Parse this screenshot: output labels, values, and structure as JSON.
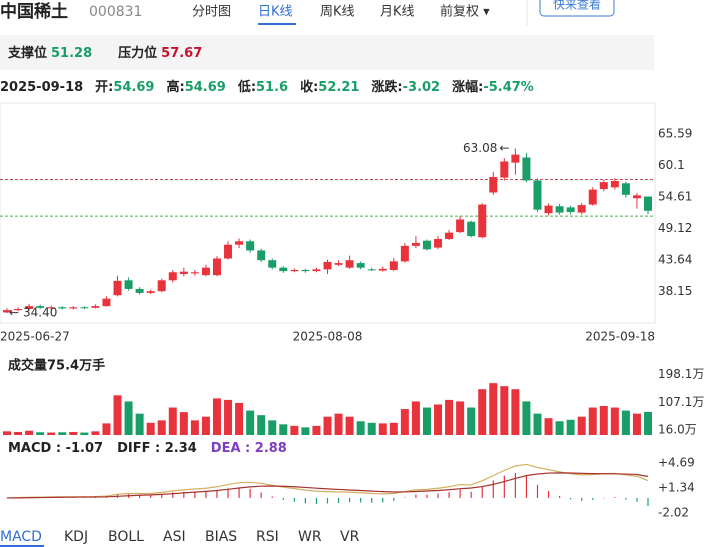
{
  "header": {
    "name": "中国稀土",
    "code": "000831",
    "tabs": [
      "分时图",
      "日K线",
      "周K线",
      "月K线",
      "前复权 ▾"
    ],
    "button": "快来查看"
  },
  "levels": {
    "support_label": "支撑位",
    "support": 51.28,
    "resistance_label": "压力位",
    "resistance": 57.67
  },
  "quote": {
    "date": "2025-09-18",
    "fields": [
      {
        "label": "开:",
        "value": 54.69
      },
      {
        "label": "高:",
        "value": 54.69
      },
      {
        "label": "低:",
        "value": 51.6
      },
      {
        "label": "收:",
        "value": 52.21
      },
      {
        "label": "涨跌:",
        "value": -3.02
      },
      {
        "label": "涨幅:",
        "value": -5.47,
        "value_label": "-5.47%"
      }
    ]
  },
  "price_chart": {
    "type": "candlestick",
    "up_color": "#e8323c",
    "down_color": "#1a9e68",
    "open": [
      34.5,
      34.9,
      35.1,
      35.6,
      35.3,
      35.4,
      35.2,
      35.4,
      35.3,
      35.6,
      37.5,
      40.1,
      38.6,
      37.9,
      38.2,
      40.1,
      41.2,
      41.3,
      41.0,
      41.0,
      43.9,
      46.3,
      46.9,
      45.3,
      43.6,
      42.3,
      41.7,
      41.9,
      41.7,
      42.0,
      42.8,
      42.3,
      43.1,
      42.0,
      41.8,
      41.9,
      43.4,
      46.1,
      47.0,
      45.8,
      47.3,
      48.5,
      50.3,
      47.6,
      55.4,
      58.0,
      60.6,
      61.5,
      57.5,
      51.8,
      53.0,
      52.8,
      51.9,
      53.3,
      56.0,
      56.3,
      57.0,
      54.4,
      54.69
    ],
    "close": [
      34.9,
      35.1,
      35.6,
      35.3,
      35.4,
      35.2,
      35.4,
      35.3,
      35.6,
      36.9,
      40.0,
      38.6,
      37.9,
      38.2,
      40.1,
      41.5,
      41.6,
      41.5,
      42.3,
      43.9,
      46.3,
      46.9,
      45.3,
      43.6,
      42.3,
      41.7,
      41.9,
      41.7,
      42.0,
      43.3,
      43.1,
      43.6,
      42.3,
      41.9,
      42.1,
      43.4,
      46.1,
      46.6,
      45.5,
      47.3,
      48.4,
      50.7,
      47.8,
      53.3,
      58.1,
      60.8,
      62.0,
      57.5,
      52.4,
      53.1,
      51.9,
      52.0,
      53.2,
      55.9,
      57.2,
      57.4,
      55.0,
      54.9,
      52.21
    ],
    "high": [
      35.2,
      35.4,
      36.0,
      35.9,
      35.7,
      35.6,
      35.6,
      35.6,
      35.9,
      37.3,
      40.9,
      40.6,
      38.9,
      38.5,
      40.4,
      41.9,
      42.3,
      41.9,
      42.8,
      44.3,
      46.9,
      47.4,
      47.2,
      45.6,
      43.9,
      42.6,
      42.2,
      42.1,
      42.3,
      43.7,
      43.6,
      44.4,
      43.4,
      42.3,
      42.5,
      44.0,
      46.6,
      47.8,
      47.2,
      47.8,
      48.9,
      51.3,
      50.5,
      53.5,
      59.0,
      61.4,
      63.08,
      62.3,
      57.9,
      53.5,
      53.4,
      53.1,
      53.6,
      56.3,
      57.6,
      57.9,
      57.3,
      55.3,
      54.69
    ],
    "low": [
      34.4,
      34.7,
      34.9,
      35.1,
      35.0,
      35.0,
      35.0,
      35.1,
      35.2,
      35.5,
      37.3,
      38.3,
      37.6,
      37.7,
      38.0,
      39.7,
      40.8,
      40.9,
      40.8,
      40.8,
      43.7,
      45.7,
      44.9,
      43.3,
      42.0,
      41.4,
      41.5,
      41.4,
      41.5,
      41.2,
      42.6,
      42.1,
      42.0,
      41.7,
      41.6,
      41.7,
      43.2,
      45.7,
      45.3,
      45.5,
      47.1,
      48.3,
      47.6,
      47.4,
      55.0,
      57.5,
      58.5,
      57.2,
      52.0,
      51.4,
      51.5,
      51.6,
      51.6,
      53.1,
      55.6,
      55.9,
      54.5,
      52.6,
      51.6
    ],
    "ylim": [
      32.66,
      70.99
    ],
    "yticks": [
      65.59,
      60.1,
      54.61,
      49.12,
      43.64,
      38.15
    ],
    "x_labels": [
      "2025-06-27",
      "2025-08-08",
      "2025-09-18"
    ],
    "annotations": [
      {
        "text": "63.08",
        "value": 63.08
      },
      {
        "text": "34.40",
        "value": 34.4
      }
    ]
  },
  "volume_chart": {
    "type": "bar",
    "title": "成交量75.4万手",
    "values": [
      12,
      10,
      14,
      9,
      8,
      9,
      10,
      8,
      12,
      38,
      130,
      110,
      70,
      40,
      48,
      90,
      75,
      48,
      60,
      120,
      115,
      105,
      80,
      65,
      48,
      35,
      30,
      25,
      30,
      60,
      70,
      60,
      45,
      40,
      38,
      40,
      85,
      110,
      90,
      100,
      115,
      110,
      90,
      150,
      170,
      160,
      150,
      110,
      70,
      55,
      45,
      50,
      60,
      90,
      95,
      90,
      80,
      70,
      75.4
    ],
    "ylim": [
      0,
      213
    ],
    "yticks": [
      {
        "value": 198.1,
        "label": "198.1万"
      },
      {
        "value": 107.1,
        "label": "107.1万"
      },
      {
        "value": 16.0,
        "label": "16.0万"
      }
    ]
  },
  "macd_chart": {
    "type": "macd",
    "legend": [
      {
        "label": "MACD : ",
        "value": -1.07
      },
      {
        "label": "DIFF : ",
        "value": 2.34
      },
      {
        "label": "DEA : ",
        "value": 2.88,
        "color": "#7b3fbf"
      }
    ],
    "diff_color": "#d2b060",
    "dea_color": "#a8322e",
    "diff": [
      0.0,
      0.05,
      0.1,
      0.12,
      0.14,
      0.15,
      0.16,
      0.17,
      0.18,
      0.25,
      0.5,
      0.6,
      0.6,
      0.6,
      0.75,
      0.95,
      1.1,
      1.2,
      1.3,
      1.5,
      1.8,
      2.05,
      2.1,
      1.95,
      1.7,
      1.45,
      1.25,
      1.05,
      0.9,
      0.85,
      0.8,
      0.78,
      0.7,
      0.6,
      0.55,
      0.6,
      0.85,
      1.1,
      1.15,
      1.3,
      1.5,
      1.8,
      1.75,
      2.3,
      3.0,
      3.7,
      4.3,
      4.5,
      4.1,
      3.8,
      3.5,
      3.25,
      3.1,
      3.15,
      3.25,
      3.3,
      3.1,
      2.9,
      2.34
    ],
    "dea": [
      0.0,
      0.01,
      0.03,
      0.05,
      0.07,
      0.09,
      0.1,
      0.12,
      0.13,
      0.15,
      0.22,
      0.3,
      0.36,
      0.41,
      0.48,
      0.57,
      0.68,
      0.78,
      0.88,
      1.0,
      1.16,
      1.34,
      1.49,
      1.58,
      1.6,
      1.57,
      1.5,
      1.41,
      1.31,
      1.22,
      1.14,
      1.07,
      1.0,
      0.92,
      0.85,
      0.8,
      0.81,
      0.87,
      0.93,
      1.0,
      1.1,
      1.24,
      1.34,
      1.53,
      1.82,
      2.2,
      2.62,
      3.0,
      3.22,
      3.34,
      3.37,
      3.35,
      3.3,
      3.27,
      3.25,
      3.24,
      3.21,
      3.15,
      2.88
    ],
    "macd": [
      0,
      0.08,
      0.14,
      0.14,
      0.14,
      0.12,
      0.12,
      0.1,
      0.1,
      0.2,
      0.56,
      0.6,
      0.48,
      0.38,
      0.54,
      0.76,
      0.84,
      0.84,
      0.84,
      1.0,
      1.28,
      1.42,
      1.22,
      0.74,
      0.2,
      -0.24,
      -0.5,
      -0.72,
      -0.82,
      -0.74,
      -0.68,
      -0.58,
      -0.6,
      -0.64,
      -0.6,
      -0.4,
      0.08,
      0.46,
      0.44,
      0.6,
      0.8,
      1.12,
      0.82,
      1.54,
      2.36,
      3.0,
      3.36,
      3.0,
      1.76,
      0.92,
      0.26,
      -0.2,
      -0.4,
      -0.24,
      0,
      0.12,
      -0.22,
      -0.5,
      -1.07
    ],
    "ylim": [
      -2.96,
      7.78
    ],
    "yticks": [
      {
        "value": 4.69,
        "label": "+4.69"
      },
      {
        "value": 1.34,
        "label": "+1.34"
      },
      -2.02
    ]
  },
  "indicator_tabs": [
    "MACD",
    "KDJ",
    "BOLL",
    "ASI",
    "BIAS",
    "RSI",
    "WR",
    "VR"
  ]
}
